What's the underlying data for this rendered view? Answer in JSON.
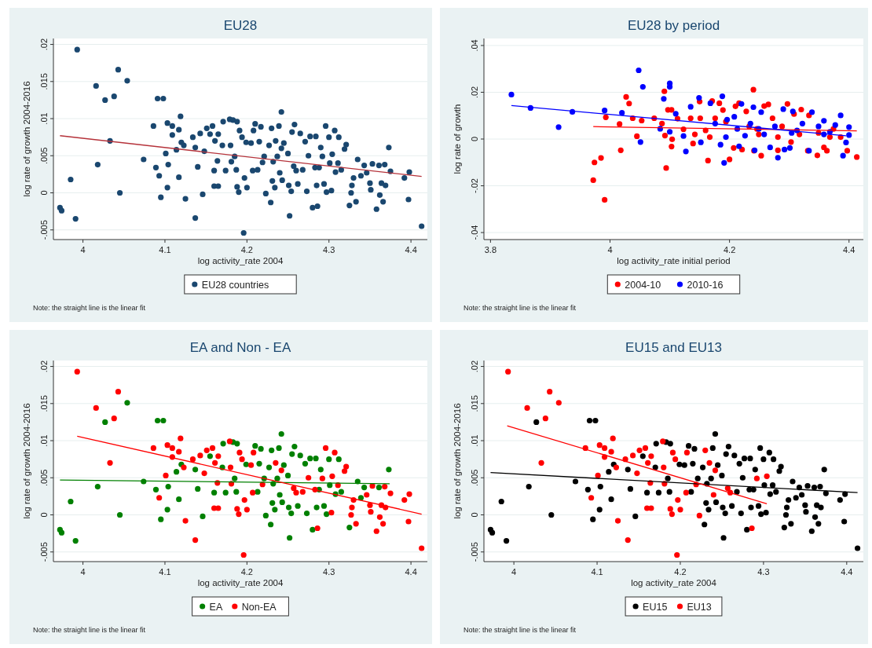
{
  "chart_data": [
    {
      "type": "scatter",
      "title": "EU28",
      "xlabel": "log activity_rate 2004",
      "ylabel": "log rate of growth 2004-2016",
      "xlim": [
        3.964,
        4.42
      ],
      "ylim": [
        -0.0063,
        0.0208
      ],
      "xticks": [
        4,
        4.1,
        4.2,
        4.3,
        4.4
      ],
      "yticks": [
        {
          "value": -0.005,
          "label": "-.005"
        },
        {
          "value": 0,
          "label": "0"
        },
        {
          "value": 0.005,
          "label": ".005"
        },
        {
          "value": 0.01,
          "label": ".01"
        },
        {
          "value": 0.015,
          "label": ".015"
        },
        {
          "value": 0.02,
          "label": ".02"
        }
      ],
      "grid": "y",
      "legend": "bottom",
      "marker": "circle",
      "annotations": [
        "Note: the straight line is the linear fit"
      ],
      "series": [
        {
          "type": "scatter",
          "name": "EU28 countries",
          "color": "#1a476f",
          "x": [
            3.972,
            3.974,
            3.985,
            3.991,
            3.993,
            4.016,
            4.018,
            4.027,
            4.033,
            4.038,
            4.043,
            4.045,
            4.054,
            4.074,
            4.086,
            4.089,
            4.091,
            4.093,
            4.095,
            4.098,
            4.101,
            4.103,
            4.103,
            4.104,
            4.109,
            4.109,
            4.114,
            4.117,
            4.117,
            4.119,
            4.12,
            4.123,
            4.125,
            4.134,
            4.137,
            4.137,
            4.14,
            4.143,
            4.146,
            4.148,
            4.151,
            4.155,
            4.158,
            4.16,
            4.16,
            4.161,
            4.165,
            4.165,
            4.164,
            4.17,
            4.171,
            4.174,
            4.179,
            4.18,
            4.181,
            4.183,
            4.185,
            4.187,
            4.188,
            4.188,
            4.19,
            4.191,
            4.194,
            4.196,
            4.197,
            4.199,
            4.2,
            4.205,
            4.207,
            4.208,
            4.21,
            4.213,
            4.215,
            4.217,
            4.219,
            4.221,
            4.223,
            4.227,
            4.229,
            4.23,
            4.231,
            4.232,
            4.234,
            4.235,
            4.237,
            4.239,
            4.24,
            4.242,
            4.242,
            4.243,
            4.245,
            4.25,
            4.251,
            4.252,
            4.254,
            4.255,
            4.257,
            4.258,
            4.26,
            4.262,
            4.265,
            4.268,
            4.271,
            4.273,
            4.275,
            4.277,
            4.28,
            4.283,
            4.284,
            4.285,
            4.286,
            4.288,
            4.29,
            4.292,
            4.294,
            4.296,
            4.297,
            4.3,
            4.301,
            4.303,
            4.304,
            4.307,
            4.308,
            4.311,
            4.312,
            4.315,
            4.319,
            4.321,
            4.325,
            4.327,
            4.328,
            4.33,
            4.333,
            4.335,
            4.339,
            4.343,
            4.346,
            4.35,
            4.351,
            4.353,
            4.358,
            4.361,
            4.362,
            4.364,
            4.366,
            4.368,
            4.369,
            4.373,
            4.375,
            4.392,
            4.397,
            4.398,
            4.413
          ],
          "values": [
            -0.002,
            -0.0024,
            0.0018,
            -0.0035,
            0.0193,
            0.0144,
            0.0038,
            0.0125,
            0.007,
            0.013,
            0.0166,
            0.0,
            0.0151,
            0.0045,
            0.009,
            0.0034,
            0.0127,
            0.0023,
            -0.0006,
            0.0127,
            0.0053,
            0.0094,
            0.0007,
            0.0038,
            0.009,
            0.0078,
            0.0058,
            0.0085,
            0.0021,
            0.0103,
            0.0068,
            0.0064,
            -0.0008,
            0.0075,
            -0.0034,
            0.0061,
            0.0035,
            0.008,
            -0.0002,
            0.0056,
            0.0087,
            0.0079,
            0.009,
            0.003,
            0.0009,
            0.007,
            0.0079,
            0.0009,
            0.0043,
            0.0064,
            0.0096,
            0.003,
            0.0099,
            0.0064,
            0.0042,
            0.0098,
            0.0049,
            0.0031,
            0.0096,
            0.0008,
            0.0001,
            0.0084,
            0.0075,
            -0.0054,
            0.002,
            0.0068,
            0.0007,
            0.0067,
            0.003,
            0.0084,
            0.0093,
            0.0031,
            0.0069,
            0.0089,
            0.0041,
            0.0049,
            -0.0001,
            0.0064,
            -0.0013,
            0.0087,
            0.0016,
            0.0042,
            0.0007,
            0.007,
            0.0049,
            0.009,
            0.0027,
            0.0109,
            0.006,
            0.0017,
            0.0067,
            0.0053,
            0.001,
            -0.0031,
            0.0002,
            0.0082,
            0.0036,
            0.0092,
            0.003,
            0.0012,
            0.008,
            0.0031,
            0.0069,
            0.0002,
            0.005,
            0.0076,
            -0.002,
            0.0034,
            0.0076,
            0.001,
            -0.0018,
            0.0034,
            0.0061,
            0.0049,
            0.0012,
            0.009,
            0.0001,
            0.0075,
            0.004,
            0.0003,
            0.0052,
            0.0084,
            0.0028,
            0.004,
            0.0075,
            0.0031,
            0.0059,
            0.0065,
            -0.0017,
            0.0,
            0.001,
            0.002,
            -0.0012,
            0.0045,
            0.0023,
            0.0037,
            0.0027,
            0.0013,
            0.0004,
            0.0039,
            -0.0022,
            0.0037,
            -0.0003,
            0.0013,
            -0.0012,
            0.0038,
            0.001,
            0.0061,
            0.0029,
            0.002,
            -0.0009,
            0.0028,
            -0.0045
          ]
        },
        {
          "type": "line",
          "marker": "none",
          "color": "#b5323a",
          "x": [
            3.972,
            4.413
          ],
          "values": [
            0.0077,
            0.0022
          ]
        }
      ]
    },
    {
      "type": "scatter",
      "title": "EU28 by period",
      "xlabel": "log activity_rate initial period",
      "ylabel": "log rate of growth",
      "xlim": [
        3.789,
        4.424
      ],
      "ylim": [
        -0.043,
        0.043
      ],
      "xticks": [
        3.8,
        4,
        4.2,
        4.4
      ],
      "yticks": [
        {
          "value": -0.04,
          "label": "-.04"
        },
        {
          "value": -0.02,
          "label": "-.02"
        },
        {
          "value": 0,
          "label": "0"
        },
        {
          "value": 0.02,
          "label": ".02"
        },
        {
          "value": 0.04,
          "label": ".04"
        }
      ],
      "grid": "y",
      "legend": "bottom",
      "marker": "circle",
      "annotations": [
        "Note: the straight line is the linear fit"
      ],
      "series": [
        {
          "type": "scatter",
          "name": "2004-10",
          "color": "#ff0000",
          "x": [
            3.972,
            3.974,
            3.985,
            3.991,
            3.993,
            4.016,
            4.018,
            4.027,
            4.032,
            4.038,
            4.045,
            4.053,
            4.074,
            4.087,
            4.092,
            4.091,
            4.094,
            4.097,
            4.103,
            4.103,
            4.104,
            4.113,
            4.123,
            4.135,
            4.139,
            4.142,
            4.15,
            4.151,
            4.16,
            4.164,
            4.171,
            4.176,
            4.183,
            4.189,
            4.194,
            4.2,
            4.207,
            4.21,
            4.216,
            4.221,
            4.228,
            4.233,
            4.24,
            4.241,
            4.246,
            4.253,
            4.258,
            4.265,
            4.272,
            4.281,
            4.288,
            4.297,
            4.303,
            4.308,
            4.32,
            4.331,
            4.333,
            4.347,
            4.358,
            4.363,
            4.374,
            4.386,
            4.397,
            4.413,
            4.281,
            4.317,
            4.349,
            4.249,
            4.167,
            4.368
          ],
          "values": [
            -0.0176,
            -0.01,
            -0.0081,
            -0.026,
            0.0093,
            0.0064,
            -0.0048,
            0.018,
            0.0152,
            0.0089,
            0.0012,
            0.0079,
            0.0089,
            0.0066,
            0.0015,
            0.0204,
            -0.0124,
            0.0125,
            0.0125,
            -0.0032,
            -0.0001,
            0.0087,
            0.0042,
            0.0089,
            -0.0019,
            0.002,
            0.016,
            0.0089,
            0.0037,
            -0.0092,
            0.0163,
            0.0089,
            0.0153,
            0.0124,
            0.0074,
            -0.0087,
            -0.0038,
            0.014,
            0.0153,
            -0.0045,
            0.0118,
            0.0054,
            0.0211,
            -0.005,
            0.0043,
            -0.0071,
            0.0141,
            0.0148,
            0.0089,
            -0.0048,
            0.0054,
            0.015,
            -0.0013,
            0.0107,
            0.0126,
            -0.005,
            0.0101,
            -0.007,
            -0.0036,
            -0.005,
            0.0043,
            0.0008,
            -0.005,
            -0.0077,
            0.0008,
            0.002,
            0.0026,
            0.002,
            0.0008,
            0.0008
          ]
        },
        {
          "type": "scatter",
          "name": "2010-16",
          "color": "#0000ff",
          "x": [
            3.835,
            3.867,
            3.914,
            3.937,
            3.991,
            4.02,
            4.048,
            4.055,
            4.051,
            4.084,
            4.09,
            4.1,
            4.1,
            4.1,
            4.11,
            4.123,
            4.127,
            4.135,
            4.149,
            4.152,
            4.168,
            4.176,
            4.185,
            4.188,
            4.191,
            4.196,
            4.208,
            4.216,
            4.22,
            4.226,
            4.235,
            4.24,
            4.242,
            4.253,
            4.258,
            4.268,
            4.276,
            4.281,
            4.29,
            4.292,
            4.301,
            4.306,
            4.313,
            4.322,
            4.333,
            4.338,
            4.349,
            4.358,
            4.368,
            4.377,
            4.386,
            4.39,
            4.395,
            4.4,
            4.4,
            4.213,
            4.194,
            4.304,
            4.358,
            4.249
          ],
          "values": [
            0.019,
            0.0133,
            0.0051,
            0.0116,
            0.0122,
            0.0112,
            0.0294,
            0.0223,
            -0.0013,
            0.0044,
            0.0172,
            0.0238,
            0.0223,
            0.0031,
            0.0108,
            0.0013,
            -0.0053,
            0.0138,
            0.0176,
            -0.0014,
            0.0153,
            0.0066,
            -0.0024,
            0.0183,
            -0.0102,
            0.0083,
            0.0095,
            -0.0031,
            0.015,
            0.0014,
            0.0066,
            0.0136,
            -0.0048,
            0.0115,
            0.002,
            -0.0036,
            0.0054,
            -0.008,
            0.0128,
            -0.0045,
            -0.0038,
            0.0118,
            0.0037,
            0.0066,
            -0.005,
            0.0115,
            0.0054,
            0.0078,
            0.0031,
            0.006,
            0.0101,
            -0.0071,
            -0.0015,
            0.0051,
            0.0017,
            0.0043,
            0.0008,
            0.0026,
            0.002,
            0.0043
          ]
        },
        {
          "type": "line",
          "marker": "none",
          "color": "#ff0000",
          "x": [
            3.972,
            4.413
          ],
          "values": [
            0.0053,
            0.0035
          ]
        },
        {
          "type": "line",
          "marker": "none",
          "color": "#0000ff",
          "x": [
            3.835,
            4.395
          ],
          "values": [
            0.0143,
            0.0014
          ]
        }
      ]
    },
    {
      "type": "scatter",
      "title": "EA and Non - EA",
      "xlabel": "log activity_rate 2004",
      "ylabel": "log rate of growth 2004-2016",
      "xlim": [
        3.964,
        4.42
      ],
      "ylim": [
        -0.0063,
        0.0208
      ],
      "xticks": [
        4,
        4.1,
        4.2,
        4.3,
        4.4
      ],
      "yticks": [
        {
          "value": -0.005,
          "label": "-.005"
        },
        {
          "value": 0,
          "label": "0"
        },
        {
          "value": 0.005,
          "label": ".005"
        },
        {
          "value": 0.01,
          "label": ".01"
        },
        {
          "value": 0.015,
          "label": ".015"
        },
        {
          "value": 0.02,
          "label": ".02"
        }
      ],
      "grid": "y",
      "legend": "bottom",
      "marker": "circle",
      "annotations": [
        "Note: the straight line is the linear fit"
      ],
      "series": [
        {
          "type": "scatter",
          "name": "EA",
          "color": "#008000",
          "x": [
            3.972,
            3.974,
            3.985,
            3.991,
            4.018,
            4.027,
            4.045,
            4.054,
            4.074,
            4.089,
            4.091,
            4.095,
            4.098,
            4.103,
            4.104,
            4.114,
            4.117,
            4.12,
            4.137,
            4.14,
            4.146,
            4.155,
            4.16,
            4.17,
            4.171,
            4.174,
            4.183,
            4.185,
            4.187,
            4.188,
            4.199,
            4.21,
            4.213,
            4.215,
            4.217,
            4.221,
            4.223,
            4.227,
            4.229,
            4.23,
            4.231,
            4.232,
            4.234,
            4.237,
            4.239,
            4.24,
            4.242,
            4.243,
            4.245,
            4.25,
            4.251,
            4.252,
            4.254,
            4.255,
            4.258,
            4.262,
            4.265,
            4.271,
            4.273,
            4.277,
            4.28,
            4.284,
            4.285,
            4.288,
            4.29,
            4.294,
            4.297,
            4.3,
            4.301,
            4.308,
            4.312,
            4.315,
            4.325,
            4.335,
            4.339,
            4.343,
            4.361,
            4.373
          ],
          "values": [
            -0.002,
            -0.0024,
            0.0018,
            -0.0035,
            0.0038,
            0.0125,
            0.0,
            0.0151,
            0.0045,
            0.0034,
            0.0127,
            -0.0006,
            0.0127,
            0.0007,
            0.0038,
            0.0058,
            0.0021,
            0.0068,
            0.0061,
            0.0035,
            -0.0002,
            0.0079,
            0.003,
            0.0064,
            0.0096,
            0.003,
            0.0098,
            0.0049,
            0.0031,
            0.0096,
            0.0068,
            0.0093,
            0.0031,
            0.0069,
            0.0089,
            0.0049,
            -0.0001,
            0.0064,
            -0.0013,
            0.0087,
            0.0016,
            0.0042,
            0.0007,
            0.0049,
            0.009,
            0.0027,
            0.0109,
            0.0017,
            0.0067,
            0.0053,
            0.001,
            -0.0031,
            0.0002,
            0.0082,
            0.0092,
            0.0012,
            0.008,
            0.0069,
            0.0002,
            0.0076,
            -0.002,
            0.0076,
            0.001,
            0.0034,
            0.0061,
            0.0012,
            0.0001,
            0.0075,
            0.004,
            0.0028,
            0.0075,
            0.0031,
            -0.0017,
            0.0045,
            0.0023,
            0.0037,
            0.0037,
            0.0061
          ]
        },
        {
          "type": "scatter",
          "name": "Non-EA",
          "color": "#ff0000",
          "x": [
            3.993,
            4.016,
            4.033,
            4.038,
            4.043,
            4.086,
            4.093,
            4.101,
            4.103,
            4.109,
            4.109,
            4.117,
            4.119,
            4.123,
            4.125,
            4.134,
            4.137,
            4.143,
            4.148,
            4.151,
            4.158,
            4.16,
            4.161,
            4.165,
            4.165,
            4.164,
            4.179,
            4.18,
            4.181,
            4.188,
            4.19,
            4.191,
            4.194,
            4.196,
            4.197,
            4.2,
            4.205,
            4.207,
            4.208,
            4.219,
            4.235,
            4.242,
            4.257,
            4.26,
            4.268,
            4.275,
            4.283,
            4.286,
            4.292,
            4.296,
            4.303,
            4.304,
            4.307,
            4.311,
            4.319,
            4.321,
            4.327,
            4.328,
            4.33,
            4.333,
            4.346,
            4.35,
            4.351,
            4.353,
            4.358,
            4.362,
            4.364,
            4.366,
            4.368,
            4.369,
            4.375,
            4.392,
            4.397,
            4.398,
            4.413
          ],
          "values": [
            0.0193,
            0.0144,
            0.007,
            0.013,
            0.0166,
            0.009,
            0.0023,
            0.0053,
            0.0094,
            0.009,
            0.0078,
            0.0085,
            0.0103,
            0.0064,
            -0.0008,
            0.0075,
            -0.0034,
            0.008,
            0.0056,
            0.0087,
            0.009,
            0.0009,
            0.007,
            0.0079,
            0.0009,
            0.0043,
            0.0099,
            0.0064,
            0.0042,
            0.0008,
            0.0001,
            0.0084,
            0.0075,
            -0.0054,
            0.002,
            0.0007,
            0.0067,
            0.003,
            0.0084,
            0.0041,
            0.007,
            0.006,
            0.0036,
            0.003,
            0.0031,
            0.005,
            0.0034,
            -0.0018,
            0.0049,
            0.009,
            0.0003,
            0.0052,
            0.0084,
            0.004,
            0.0059,
            0.0065,
            0.0,
            0.001,
            0.002,
            -0.0012,
            0.0027,
            0.0013,
            0.0004,
            0.0039,
            -0.0022,
            -0.0003,
            0.0013,
            -0.0012,
            0.0038,
            0.001,
            0.0029,
            0.002,
            -0.0009,
            0.0028,
            -0.0045
          ]
        },
        {
          "type": "line",
          "marker": "none",
          "color": "#008000",
          "x": [
            3.972,
            4.374
          ],
          "values": [
            0.0047,
            0.0042
          ]
        },
        {
          "type": "line",
          "marker": "none",
          "color": "#ff0000",
          "x": [
            3.993,
            4.413
          ],
          "values": [
            0.0106,
            0.0001
          ]
        }
      ]
    },
    {
      "type": "scatter",
      "title": "EU15 and EU13",
      "xlabel": "log activity_rate 2004",
      "ylabel": "log rate of growth 2004-2016",
      "xlim": [
        3.964,
        4.42
      ],
      "ylim": [
        -0.0063,
        0.0208
      ],
      "xticks": [
        4,
        4.1,
        4.2,
        4.3,
        4.4
      ],
      "yticks": [
        {
          "value": -0.005,
          "label": "-.005"
        },
        {
          "value": 0,
          "label": "0"
        },
        {
          "value": 0.005,
          "label": ".005"
        },
        {
          "value": 0.01,
          "label": ".01"
        },
        {
          "value": 0.015,
          "label": ".015"
        },
        {
          "value": 0.02,
          "label": ".02"
        }
      ],
      "grid": "y",
      "legend": "bottom",
      "marker": "circle",
      "annotations": [
        "Note: the straight line is the linear fit"
      ],
      "series": [
        {
          "type": "scatter",
          "name": "EU15",
          "color": "#000000",
          "x": [
            3.972,
            3.974,
            3.985,
            3.991,
            4.018,
            4.027,
            4.045,
            4.074,
            4.089,
            4.091,
            4.095,
            4.098,
            4.103,
            4.104,
            4.114,
            4.117,
            4.12,
            4.137,
            4.14,
            4.146,
            4.155,
            4.16,
            4.17,
            4.171,
            4.174,
            4.183,
            4.185,
            4.187,
            4.188,
            4.199,
            4.205,
            4.21,
            4.213,
            4.215,
            4.217,
            4.221,
            4.227,
            4.229,
            4.231,
            4.232,
            4.234,
            4.237,
            4.239,
            4.242,
            4.243,
            4.245,
            4.25,
            4.251,
            4.252,
            4.254,
            4.255,
            4.258,
            4.262,
            4.265,
            4.268,
            4.271,
            4.273,
            4.275,
            4.277,
            4.28,
            4.283,
            4.284,
            4.285,
            4.288,
            4.29,
            4.294,
            4.296,
            4.297,
            4.3,
            4.301,
            4.303,
            4.307,
            4.308,
            4.311,
            4.312,
            4.315,
            4.319,
            4.321,
            4.325,
            4.327,
            4.328,
            4.33,
            4.333,
            4.335,
            4.339,
            4.343,
            4.346,
            4.35,
            4.351,
            4.353,
            4.358,
            4.361,
            4.362,
            4.364,
            4.366,
            4.368,
            4.369,
            4.373,
            4.375,
            4.392,
            4.397,
            4.398,
            4.413
          ],
          "values": [
            -0.002,
            -0.0024,
            0.0018,
            -0.0035,
            0.0038,
            0.0125,
            0.0,
            0.0045,
            0.0034,
            0.0127,
            -0.0006,
            0.0127,
            0.0007,
            0.0038,
            0.0058,
            0.0021,
            0.0068,
            0.0061,
            0.0035,
            -0.0002,
            0.0079,
            0.003,
            0.0064,
            0.0096,
            0.003,
            0.0098,
            0.0049,
            0.0031,
            0.0096,
            0.0068,
            0.0067,
            0.0093,
            0.0031,
            0.0069,
            0.0089,
            0.0049,
            0.0064,
            -0.0013,
            0.0016,
            0.0042,
            0.0007,
            0.0049,
            0.009,
            0.0109,
            0.0017,
            0.0067,
            0.0053,
            0.001,
            -0.0031,
            0.0002,
            0.0082,
            0.0092,
            0.0012,
            0.008,
            0.0031,
            0.0069,
            0.0002,
            0.005,
            0.0076,
            -0.002,
            0.0034,
            0.0076,
            0.001,
            0.0034,
            0.0061,
            0.0012,
            0.009,
            0.0001,
            0.0075,
            0.004,
            0.0003,
            0.0084,
            0.0028,
            0.004,
            0.0075,
            0.0031,
            0.0059,
            0.0065,
            -0.0017,
            0.0,
            0.001,
            0.002,
            -0.0012,
            0.0045,
            0.0023,
            0.0037,
            0.0027,
            0.0013,
            0.0004,
            0.0039,
            -0.0022,
            0.0037,
            -0.0003,
            0.0013,
            -0.0012,
            0.0038,
            0.001,
            0.0061,
            0.0029,
            0.002,
            -0.0009,
            0.0028,
            -0.0045
          ]
        },
        {
          "type": "scatter",
          "name": "EU13",
          "color": "#ff0000",
          "x": [
            3.993,
            4.016,
            4.033,
            4.038,
            4.043,
            4.054,
            4.086,
            4.093,
            4.101,
            4.103,
            4.109,
            4.109,
            4.117,
            4.119,
            4.123,
            4.125,
            4.134,
            4.137,
            4.143,
            4.148,
            4.151,
            4.158,
            4.16,
            4.161,
            4.165,
            4.165,
            4.164,
            4.179,
            4.18,
            4.181,
            4.188,
            4.19,
            4.191,
            4.194,
            4.196,
            4.197,
            4.2,
            4.207,
            4.208,
            4.219,
            4.223,
            4.23,
            4.235,
            4.24,
            4.242,
            4.257,
            4.26,
            4.286,
            4.292,
            4.304
          ],
          "values": [
            0.0193,
            0.0144,
            0.007,
            0.013,
            0.0166,
            0.0151,
            0.009,
            0.0023,
            0.0053,
            0.0094,
            0.009,
            0.0078,
            0.0085,
            0.0103,
            0.0064,
            -0.0008,
            0.0075,
            -0.0034,
            0.008,
            0.0056,
            0.0087,
            0.009,
            0.0009,
            0.007,
            0.0079,
            0.0009,
            0.0043,
            0.0099,
            0.0064,
            0.0042,
            0.0008,
            0.0001,
            0.0084,
            0.0075,
            -0.0054,
            0.002,
            0.0007,
            0.003,
            0.0084,
            0.0041,
            -0.0001,
            0.0087,
            0.007,
            0.0027,
            0.006,
            0.0036,
            0.003,
            -0.0018,
            0.0049,
            0.0052
          ]
        },
        {
          "type": "line",
          "marker": "none",
          "color": "#000000",
          "x": [
            3.972,
            4.413
          ],
          "values": [
            0.0057,
            0.003
          ]
        },
        {
          "type": "line",
          "marker": "none",
          "color": "#ff0000",
          "x": [
            3.992,
            4.304
          ],
          "values": [
            0.012,
            0.0015
          ]
        }
      ]
    }
  ]
}
